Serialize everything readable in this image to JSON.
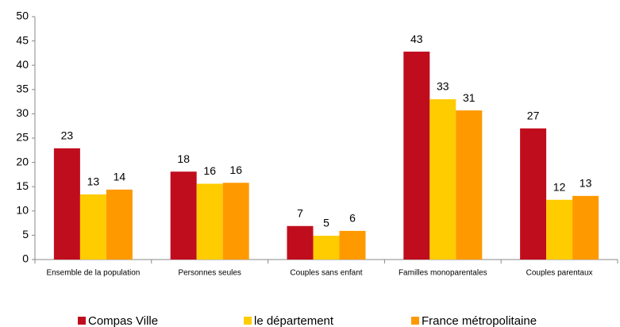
{
  "chart_data": {
    "type": "bar",
    "categories": [
      "Ensemble de la population",
      "Personnes seules",
      "Couples sans enfant",
      "Familles monoparentales",
      "Couples parentaux"
    ],
    "series": [
      {
        "name": "Compas Ville",
        "color": "#c00d1e",
        "values": [
          22.9,
          18.1,
          6.9,
          42.8,
          27.0
        ],
        "value_labels": [
          "23",
          "18",
          "7",
          "43",
          "27"
        ]
      },
      {
        "name": "le département",
        "color": "#ffcc00",
        "values": [
          13.4,
          15.6,
          4.9,
          33.0,
          12.3
        ],
        "value_labels": [
          "13",
          "16",
          "5",
          "33",
          "12"
        ]
      },
      {
        "name": "France métropolitaine",
        "color": "#ff9900",
        "values": [
          14.4,
          15.8,
          5.9,
          30.7,
          13.1
        ],
        "value_labels": [
          "14",
          "16",
          "6",
          "31",
          "13"
        ]
      }
    ],
    "ylim": [
      0,
      50
    ],
    "yticks": [
      0,
      5,
      10,
      15,
      20,
      25,
      30,
      35,
      40,
      45,
      50
    ],
    "grid": false,
    "legend": "bottom"
  }
}
